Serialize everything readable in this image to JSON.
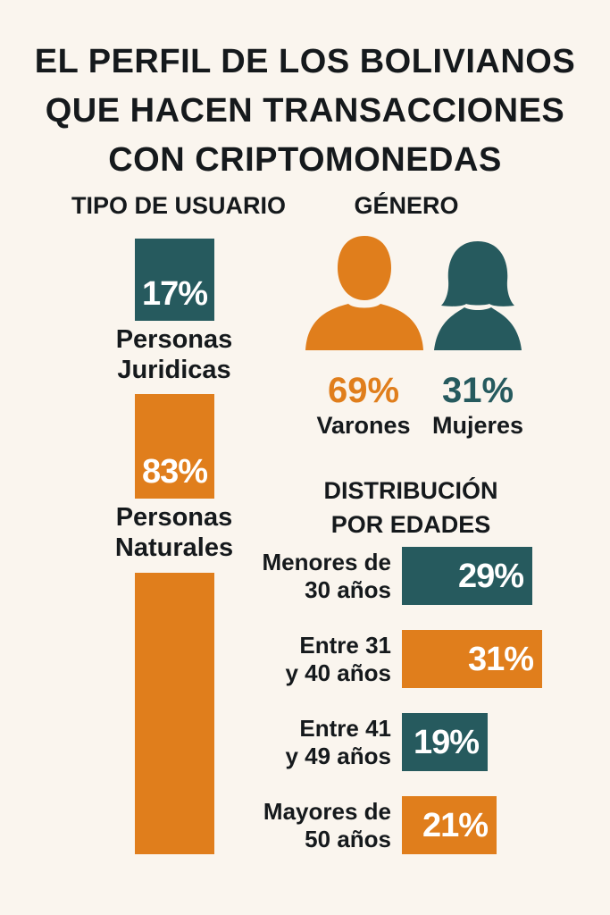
{
  "title_lines": [
    "EL PERFIL DE LOS BOLIVIANOS",
    "QUE HACEN TRANSACCIONES",
    "CON CRIPTOMONEDAS"
  ],
  "colors": {
    "orange": "#e07e1c",
    "teal": "#265a5e",
    "background": "#faf5ee",
    "text": "#15191c"
  },
  "chart_data": [
    {
      "type": "bar",
      "title": "TIPO DE USUARIO",
      "categories": [
        "Personas Juridicas",
        "Personas Naturales"
      ],
      "label_lines": [
        [
          "Personas",
          "Juridicas"
        ],
        [
          "Personas",
          "Naturales"
        ]
      ],
      "values": [
        17,
        83
      ],
      "value_labels": [
        "17%",
        "83%"
      ],
      "colors": [
        "#265a5e",
        "#e07e1c"
      ],
      "unit": "%"
    },
    {
      "type": "pie",
      "title": "GÉNERO",
      "categories": [
        "Varones",
        "Mujeres"
      ],
      "values": [
        69,
        31
      ],
      "value_labels": [
        "69%",
        "31%"
      ],
      "colors": [
        "#e07e1c",
        "#265a5e"
      ],
      "icons": [
        "man-silhouette-icon",
        "woman-silhouette-icon"
      ],
      "unit": "%"
    },
    {
      "type": "bar",
      "title_lines": [
        "DISTRIBUCIÓN",
        "POR EDADES"
      ],
      "categories": [
        "Menores de 30 años",
        "Entre 31 y 40 años",
        "Entre 41 y 49 años",
        "Mayores de 50 años"
      ],
      "label_lines": [
        [
          "Menores de",
          "30 años"
        ],
        [
          "Entre 31",
          "y 40 años"
        ],
        [
          "Entre 41",
          "y 49 años"
        ],
        [
          "Mayores de",
          "50 años"
        ]
      ],
      "values": [
        29,
        31,
        19,
        21
      ],
      "value_labels": [
        "29%",
        "31%",
        "19%",
        "21%"
      ],
      "colors": [
        "#265a5e",
        "#e07e1c",
        "#265a5e",
        "#e07e1c"
      ],
      "unit": "%"
    }
  ]
}
